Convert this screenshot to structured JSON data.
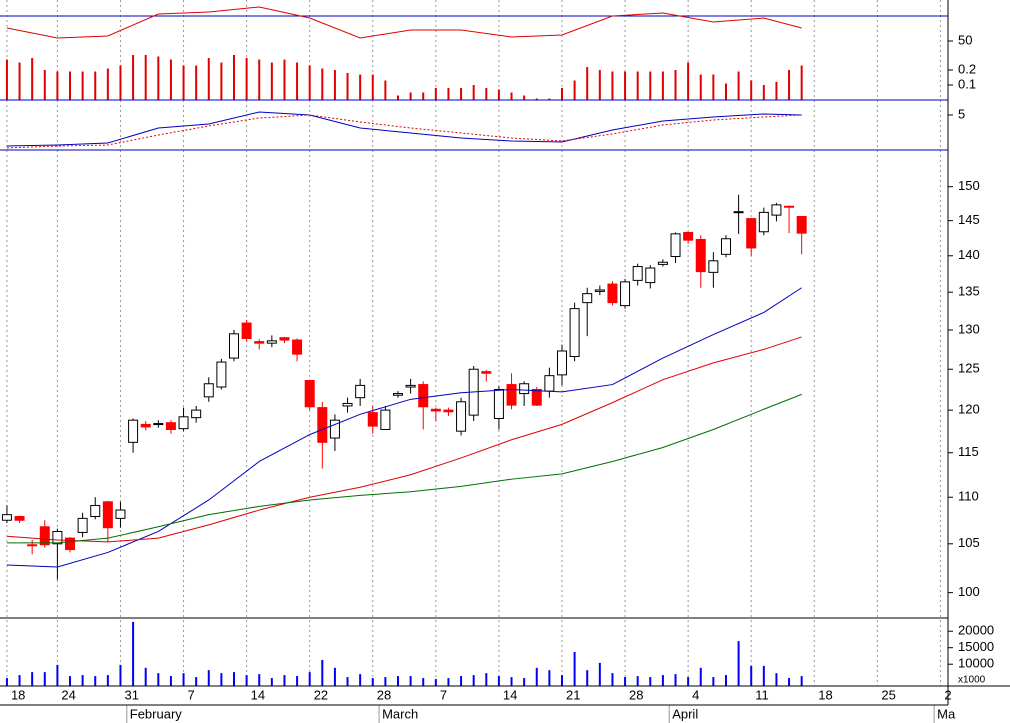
{
  "chart_data": [
    {
      "type": "line",
      "ylim": [
        2.8,
        82.8
      ],
      "yticks": [
        50
      ],
      "reference_line": 70,
      "reference_color": "#0000c0",
      "x": [
        0,
        4,
        8,
        12,
        16,
        20,
        24,
        28,
        32,
        36,
        40,
        44,
        48,
        52,
        56,
        60,
        63
      ],
      "series": [
        {
          "color": "#e00000",
          "values": [
            60.4,
            52.4,
            54,
            71.6,
            73.2,
            77.2,
            68.4,
            52.4,
            58.8,
            58.8,
            53.2,
            54.8,
            70,
            72.4,
            65.2,
            68.4,
            60.4
          ]
        }
      ]
    },
    {
      "type": "bar",
      "ylim": [
        0,
        0.667
      ],
      "yticks": [
        0.1,
        0.2
      ],
      "color": "#e00000",
      "values": [
        0.27,
        0.25,
        0.28,
        0.2,
        0.19,
        0.19,
        0.19,
        0.19,
        0.21,
        0.23,
        0.3,
        0.3,
        0.29,
        0.27,
        0.23,
        0.23,
        0.28,
        0.25,
        0.3,
        0.28,
        0.27,
        0.25,
        0.27,
        0.25,
        0.23,
        0.21,
        0.2,
        0.18,
        0.17,
        0.17,
        0.13,
        0.03,
        0.05,
        0.05,
        0.08,
        0.08,
        0.08,
        0.1,
        0.08,
        0.07,
        0.05,
        0.03,
        0.01,
        0.01,
        0.08,
        0.13,
        0.22,
        0.2,
        0.19,
        0.19,
        0.19,
        0.19,
        0.19,
        0.2,
        0.25,
        0.17,
        0.17,
        0.11,
        0.19,
        0.13,
        0.1,
        0.12,
        0.2,
        0.23
      ]
    },
    {
      "type": "line",
      "ylim": [
        0,
        7.14
      ],
      "yticks": [
        5
      ],
      "x": [
        0,
        4,
        8,
        12,
        16,
        20,
        24,
        28,
        32,
        36,
        40,
        44,
        48,
        52,
        56,
        60,
        63
      ],
      "series": [
        {
          "color": "#0000c0",
          "values": [
            0.57,
            0.71,
            1.0,
            3.14,
            3.71,
            5.43,
            5.0,
            3.14,
            2.43,
            1.71,
            1.29,
            1.14,
            2.86,
            4.14,
            4.71,
            5.14,
            5.0
          ]
        },
        {
          "color": "#e00000",
          "dashed": true,
          "values": [
            0.29,
            0.57,
            0.71,
            2.14,
            3.43,
            4.57,
            5.0,
            4.0,
            3.14,
            2.43,
            1.71,
            1.29,
            2.29,
            3.57,
            4.29,
            4.71,
            5.0
          ]
        }
      ]
    },
    {
      "type": "candlestick",
      "log_scale": true,
      "ylim": [
        97.5,
        155.6
      ],
      "yticks": [
        100,
        105,
        110,
        115,
        120,
        125,
        130,
        135,
        140,
        145,
        150
      ],
      "xlim": [
        -0.55,
        74.6
      ],
      "grid": "x",
      "up_color": "#ffffff",
      "down_color": "#ff0000",
      "xticks": [
        {
          "value": 0,
          "label": "18"
        },
        {
          "value": 4,
          "label": "24"
        },
        {
          "value": 9,
          "label": "31"
        },
        {
          "value": 14,
          "label": "7"
        },
        {
          "value": 19,
          "label": "14"
        },
        {
          "value": 24,
          "label": "22"
        },
        {
          "value": 29,
          "label": "28"
        },
        {
          "value": 34,
          "label": "7"
        },
        {
          "value": 39,
          "label": "14"
        },
        {
          "value": 44,
          "label": "21"
        },
        {
          "value": 49,
          "label": "28"
        },
        {
          "value": 54,
          "label": "4"
        },
        {
          "value": 59,
          "label": "11"
        },
        {
          "value": 64,
          "label": "18"
        },
        {
          "value": 69,
          "label": "25"
        },
        {
          "value": 74,
          "label": "2"
        }
      ],
      "month_ticks": [
        {
          "value": 9.5,
          "label": "February"
        },
        {
          "value": 29.5,
          "label": "March"
        },
        {
          "value": 52.5,
          "label": "April"
        },
        {
          "value": 73.5,
          "label": "Ma"
        }
      ],
      "x": [
        0,
        1,
        2,
        3,
        4,
        5,
        6,
        7,
        8,
        9,
        10,
        11,
        12,
        13,
        14,
        15,
        16,
        17,
        18,
        19,
        20,
        21,
        22,
        23,
        24,
        25,
        26,
        27,
        28,
        29,
        30,
        31,
        32,
        33,
        34,
        35,
        36,
        37,
        38,
        39,
        40,
        41,
        42,
        43,
        44,
        45,
        46,
        47,
        48,
        49,
        50,
        51,
        52,
        53,
        54,
        55,
        56,
        57,
        58,
        59,
        60,
        61,
        62,
        63
      ],
      "open": [
        107.5,
        107.9,
        104.9,
        106.8,
        105.0,
        105.6,
        106.2,
        107.9,
        109.5,
        107.7,
        116.2,
        118.3,
        118.3,
        118.5,
        117.8,
        119.1,
        121.6,
        122.8,
        126.4,
        130.9,
        128.5,
        128.3,
        129.0,
        128.7,
        123.6,
        120.3,
        116.7,
        120.5,
        121.5,
        119.7,
        117.7,
        121.8,
        122.8,
        123.1,
        120.1,
        120.0,
        117.5,
        119.4,
        124.7,
        119.0,
        123.1,
        122.0,
        122.5,
        122.3,
        124.3,
        126.6,
        133.6,
        135.1,
        136.1,
        133.2,
        136.6,
        136.3,
        138.8,
        139.9,
        143.3,
        142.3,
        137.7,
        140.2,
        146.2,
        145.3,
        143.4,
        145.8,
        147.1,
        145.6
      ],
      "high": [
        109.1,
        108.0,
        105.4,
        107.5,
        106.6,
        105.7,
        108.3,
        110.0,
        109.6,
        109.5,
        119.0,
        118.7,
        118.8,
        118.8,
        120.3,
        120.5,
        124.0,
        126.3,
        130.0,
        131.3,
        128.8,
        129.3,
        129.1,
        128.9,
        123.7,
        121.0,
        119.5,
        121.5,
        123.8,
        120.5,
        120.5,
        122.3,
        123.8,
        123.5,
        120.3,
        120.3,
        121.5,
        125.4,
        124.9,
        122.9,
        124.5,
        123.5,
        122.8,
        125.2,
        128.1,
        133.6,
        135.6,
        135.9,
        136.5,
        136.8,
        138.9,
        138.7,
        139.5,
        143.3,
        143.4,
        142.9,
        140.5,
        142.9,
        148.8,
        145.4,
        146.9,
        147.6,
        147.2,
        145.7
      ],
      "low": [
        107.2,
        107.2,
        103.9,
        104.6,
        101.3,
        104.1,
        105.7,
        107.6,
        105.2,
        106.7,
        115.0,
        117.6,
        117.9,
        117.2,
        117.5,
        118.5,
        121.0,
        122.5,
        126.0,
        128.5,
        127.5,
        127.8,
        128.3,
        126.0,
        120.0,
        113.2,
        115.2,
        119.7,
        120.5,
        117.2,
        117.7,
        121.5,
        122.0,
        117.7,
        118.7,
        119.3,
        117.0,
        118.7,
        123.5,
        117.7,
        120.1,
        120.5,
        120.5,
        121.5,
        123.0,
        126.0,
        129.2,
        134.6,
        133.2,
        132.8,
        135.9,
        135.5,
        138.5,
        139.0,
        141.7,
        135.6,
        135.6,
        139.8,
        143.1,
        140.0,
        142.9,
        144.9,
        143.2,
        140.2
      ],
      "close": [
        108.1,
        107.5,
        104.8,
        104.9,
        106.3,
        104.4,
        107.7,
        109.1,
        106.7,
        108.6,
        118.8,
        118.0,
        118.4,
        117.7,
        119.2,
        120.0,
        123.2,
        125.9,
        129.5,
        128.9,
        128.3,
        128.6,
        128.7,
        126.9,
        120.4,
        116.2,
        118.8,
        120.8,
        123.0,
        118.1,
        120.0,
        122.0,
        123.0,
        120.4,
        119.9,
        119.8,
        121.0,
        125.0,
        124.5,
        122.5,
        120.6,
        123.2,
        120.6,
        124.2,
        127.3,
        132.8,
        134.8,
        135.3,
        133.6,
        136.4,
        138.5,
        138.3,
        139.1,
        143.1,
        142.2,
        137.8,
        139.3,
        142.4,
        146.3,
        141.1,
        146.2,
        147.3,
        147.0,
        143.2
      ],
      "series": [
        {
          "color": "#0000c0",
          "x": [
            0,
            4,
            8,
            12,
            16,
            20,
            24,
            28,
            32,
            36,
            40,
            44,
            48,
            52,
            56,
            60,
            63
          ],
          "values": [
            102.8,
            102.6,
            104.1,
            106.3,
            109.7,
            114.0,
            117.1,
            119.5,
            121.3,
            122.1,
            122.5,
            122.2,
            123.1,
            126.4,
            129.4,
            132.3,
            135.6
          ]
        },
        {
          "color": "#e00000",
          "x": [
            0,
            4,
            8,
            12,
            16,
            20,
            24,
            28,
            32,
            36,
            40,
            44,
            48,
            52,
            56,
            60,
            63
          ],
          "values": [
            105.8,
            105.4,
            105.2,
            105.6,
            107.0,
            108.6,
            110.0,
            111.1,
            112.5,
            114.4,
            116.5,
            118.3,
            120.9,
            123.7,
            125.8,
            127.5,
            129.1
          ]
        },
        {
          "color": "#007000",
          "x": [
            0,
            4,
            8,
            12,
            16,
            20,
            24,
            28,
            32,
            36,
            40,
            44,
            48,
            52,
            56,
            60,
            63
          ],
          "values": [
            105.1,
            105.1,
            105.6,
            106.8,
            108.1,
            109.0,
            109.7,
            110.2,
            110.6,
            111.2,
            112.0,
            112.6,
            114.0,
            115.6,
            117.7,
            120.1,
            121.9
          ]
        }
      ]
    },
    {
      "type": "bar",
      "ylim": [
        3400,
        24000
      ],
      "yticks": [
        10000,
        15000,
        20000
      ],
      "unit_label": "x1000",
      "color": "#0000ff",
      "values": [
        5800,
        6700,
        7600,
        7600,
        9800,
        6400,
        6700,
        6400,
        6700,
        9800,
        22800,
        8900,
        7300,
        6400,
        7300,
        6100,
        8200,
        7300,
        7600,
        6700,
        7000,
        5800,
        6700,
        6400,
        7600,
        11300,
        8900,
        6100,
        7000,
        5800,
        6100,
        6400,
        6400,
        5800,
        5500,
        5800,
        6400,
        6700,
        7300,
        6400,
        6100,
        5800,
        8900,
        8200,
        6700,
        13700,
        8200,
        10400,
        7300,
        6100,
        6400,
        6100,
        6700,
        7000,
        6100,
        8900,
        6100,
        6700,
        17000,
        9500,
        9500,
        7300,
        5800,
        6400
      ]
    }
  ]
}
